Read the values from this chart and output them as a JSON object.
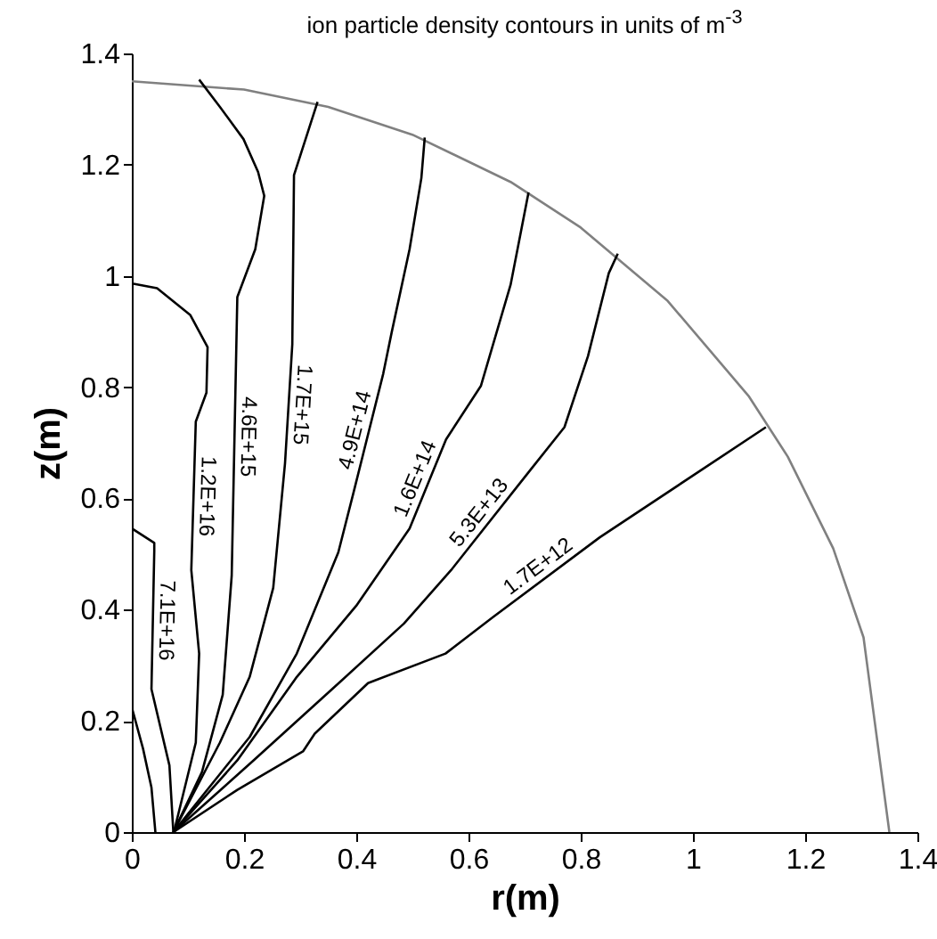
{
  "chart_data": {
    "type": "line",
    "title": "ion particle density contours in units of m$^{-3}$",
    "xlabel": "r(m)",
    "ylabel": "z(m)",
    "xlim": [
      0,
      1.4
    ],
    "ylim": [
      0,
      1.4
    ],
    "xticks": [
      0,
      0.2,
      0.4,
      0.6,
      0.8,
      1,
      1.2,
      1.4
    ],
    "yticks": [
      0,
      0.2,
      0.4,
      0.6,
      0.8,
      1,
      1.2,
      1.4
    ],
    "series": [
      {
        "color": "#808080",
        "x": [
          0,
          0.2,
          0.35,
          0.5,
          0.675,
          0.8,
          0.955,
          1.1,
          1.169,
          1.25,
          1.304,
          1.35
        ],
        "values": [
          1.35,
          1.335,
          1.304,
          1.254,
          1.169,
          1.087,
          0.955,
          0.783,
          0.675,
          0.51,
          0.35,
          0
        ]
      },
      {
        "color": "#000000",
        "x": [
          0,
          0.02,
          0.035,
          0.042
        ],
        "values": [
          0.224,
          0.15,
          0.08,
          0
        ]
      },
      {
        "name": "7.1E+16",
        "color": "#000000",
        "x": [
          0,
          0.04,
          0.04,
          0.035,
          0.067,
          0.074
        ],
        "values": [
          0.546,
          0.52,
          0.505,
          0.257,
          0.12,
          0
        ]
      },
      {
        "name": "1.2E+16",
        "color": "#000000",
        "x": [
          0.003,
          0.045,
          0.104,
          0.135,
          0.133,
          0.114,
          0.106,
          0.12,
          0.114,
          0.075
        ],
        "values": [
          0.986,
          0.978,
          0.93,
          0.872,
          0.79,
          0.738,
          0.471,
          0.321,
          0.161,
          0
        ]
      },
      {
        "name": "4.6E+15",
        "color": "#000000",
        "x": [
          0.12,
          0.157,
          0.199,
          0.225,
          0.236,
          0.22,
          0.188,
          0.178,
          0.162,
          0.125,
          0.074
        ],
        "values": [
          1.353,
          1.304,
          1.246,
          1.187,
          1.144,
          1.048,
          0.962,
          0.461,
          0.247,
          0.108,
          0
        ]
      },
      {
        "name": "1.7E+15",
        "color": "#000000",
        "x": [
          0.331,
          0.289,
          0.286,
          0.273,
          0.252,
          0.21,
          0.157,
          0.074
        ],
        "values": [
          1.313,
          1.181,
          0.877,
          0.663,
          0.439,
          0.279,
          0.161,
          0
        ]
      },
      {
        "name": "4.9E+14",
        "color": "#000000",
        "x": [
          0.522,
          0.516,
          0.495,
          0.463,
          0.448,
          0.395,
          0.368,
          0.294,
          0.21,
          0.074
        ],
        "values": [
          1.249,
          1.176,
          1.048,
          0.898,
          0.824,
          0.61,
          0.503,
          0.321,
          0.171,
          0
        ]
      },
      {
        "name": "1.6E+14",
        "color": "#000000",
        "x": [
          0.707,
          0.675,
          0.622,
          0.56,
          0.495,
          0.4,
          0.294,
          0.188,
          0.074
        ],
        "values": [
          1.15,
          0.984,
          0.802,
          0.706,
          0.546,
          0.407,
          0.279,
          0.129,
          0
        ]
      },
      {
        "name": "5.3E+13",
        "color": "#000000",
        "x": [
          0.866,
          0.85,
          0.813,
          0.771,
          0.707,
          0.569,
          0.485,
          0.357,
          0.217,
          0.074
        ],
        "values": [
          1.04,
          1.005,
          0.856,
          0.728,
          0.647,
          0.471,
          0.375,
          0.257,
          0.129,
          0
        ]
      },
      {
        "name": "1.7E+12",
        "color": "#000000",
        "x": [
          1.13,
          0.834,
          0.643,
          0.559,
          0.421,
          0.326,
          0.305,
          0.188,
          0.074
        ],
        "values": [
          0.728,
          0.53,
          0.386,
          0.321,
          0.268,
          0.177,
          0.145,
          0.076,
          0
        ]
      }
    ]
  }
}
